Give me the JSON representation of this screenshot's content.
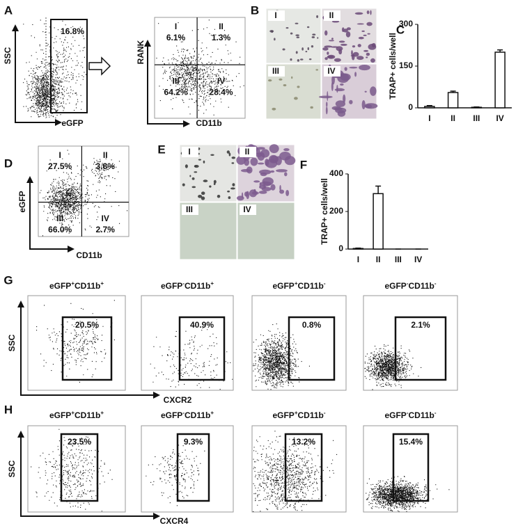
{
  "panels": {
    "A": {
      "label": "A",
      "gate_plot": {
        "y_label": "SSC",
        "x_label": "eGFP",
        "gate_pct": "16.8%"
      },
      "quad_plot": {
        "y_label": "RANK",
        "x_label": "CD11b",
        "quadrants": [
          {
            "id": "I",
            "pct": "6.1%"
          },
          {
            "id": "II",
            "pct": "1.3%"
          },
          {
            "id": "III",
            "pct": "64.2%"
          },
          {
            "id": "IV",
            "pct": "28.4%"
          }
        ]
      }
    },
    "B": {
      "label": "B",
      "images": [
        "I",
        "II",
        "III",
        "IV"
      ]
    },
    "D": {
      "label": "D",
      "quad_plot": {
        "y_label": "eGFP",
        "x_label": "CD11b",
        "quadrants": [
          {
            "id": "I",
            "pct": "27.5%"
          },
          {
            "id": "II",
            "pct": "3.8%"
          },
          {
            "id": "III",
            "pct": "66.0%"
          },
          {
            "id": "IV",
            "pct": "2.7%"
          }
        ]
      }
    },
    "E": {
      "label": "E",
      "images": [
        "I",
        "II",
        "III",
        "IV"
      ]
    },
    "G": {
      "label": "G",
      "y_label": "SSC",
      "x_label": "CXCR2",
      "plots": [
        {
          "title": {
            "m1": "eGFP",
            "s1": "+",
            "m2": "CD11b",
            "s2": "+"
          },
          "gate_pct": "20.5%"
        },
        {
          "title": {
            "m1": "eGFP",
            "s1": "-",
            "m2": "CD11b",
            "s2": "+"
          },
          "gate_pct": "40.9%"
        },
        {
          "title": {
            "m1": "eGFP",
            "s1": "+",
            "m2": "CD11b",
            "s2": "-"
          },
          "gate_pct": "0.8%"
        },
        {
          "title": {
            "m1": "eGFP",
            "s1": "-",
            "m2": "CD11b",
            "s2": "-"
          },
          "gate_pct": "2.1%"
        }
      ]
    },
    "H": {
      "label": "H",
      "y_label": "SSC",
      "x_label": "CXCR4",
      "plots": [
        {
          "title": {
            "m1": "eGFP",
            "s1": "+",
            "m2": "CD11b",
            "s2": "+"
          },
          "gate_pct": "23.5%"
        },
        {
          "title": {
            "m1": "eGFP",
            "s1": "-",
            "m2": "CD11b",
            "s2": "+"
          },
          "gate_pct": "9.3%"
        },
        {
          "title": {
            "m1": "eGFP",
            "s1": "+",
            "m2": "CD11b",
            "s2": "-"
          },
          "gate_pct": "13.2%"
        },
        {
          "title": {
            "m1": "eGFP",
            "s1": "-",
            "m2": "CD11b",
            "s2": "-"
          },
          "gate_pct": "15.4%"
        }
      ]
    }
  },
  "chart_data": [
    {
      "type": "bar",
      "panel_label": "C",
      "y_label": "TRAP+ cells/well",
      "categories": [
        "I",
        "II",
        "III",
        "IV"
      ],
      "values": [
        5,
        55,
        2,
        200
      ],
      "errors": [
        3,
        5,
        1,
        8
      ],
      "ylim": [
        0,
        300
      ],
      "yticks": [
        0,
        150,
        300
      ],
      "color": "#ffffff"
    },
    {
      "type": "bar",
      "panel_label": "F",
      "y_label": "TRAP+ cells/well",
      "categories": [
        "I",
        "II",
        "III",
        "IV"
      ],
      "values": [
        3,
        295,
        0,
        0
      ],
      "errors": [
        2,
        40,
        0,
        0
      ],
      "ylim": [
        0,
        400
      ],
      "yticks": [
        0,
        200,
        400
      ],
      "color": "#ffffff"
    }
  ]
}
